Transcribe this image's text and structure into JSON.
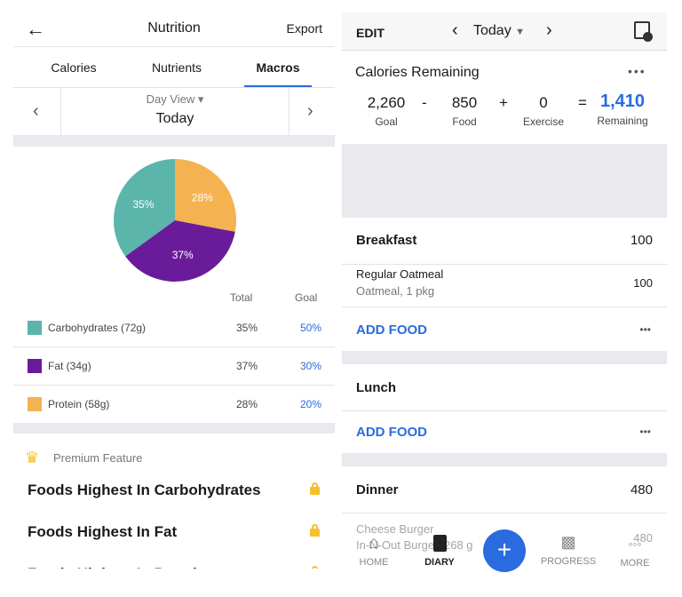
{
  "left": {
    "header": {
      "title": "Nutrition",
      "export": "Export"
    },
    "tabs": [
      {
        "label": "Calories"
      },
      {
        "label": "Nutrients"
      },
      {
        "label": "Macros"
      }
    ],
    "day": {
      "view": "Day View",
      "date": "Today"
    },
    "chart_data": {
      "type": "pie",
      "slices": [
        {
          "name": "Protein",
          "value": 28,
          "label": "28%",
          "color": "#f4b350"
        },
        {
          "name": "Fat",
          "value": 37,
          "label": "37%",
          "color": "#6a1b9a"
        },
        {
          "name": "Carbohydrates",
          "value": 35,
          "label": "35%",
          "color": "#5bb5aa"
        }
      ]
    },
    "table": {
      "total_header": "Total",
      "goal_header": "Goal",
      "rows": [
        {
          "name": "Carbohydrates (72g)",
          "total": "35%",
          "goal": "50%",
          "color": "#5bb5aa"
        },
        {
          "name": "Fat (34g)",
          "total": "37%",
          "goal": "30%",
          "color": "#6a1b9a"
        },
        {
          "name": "Protein (58g)",
          "total": "28%",
          "goal": "20%",
          "color": "#f4b350"
        }
      ]
    },
    "premium": {
      "label": "Premium Feature",
      "items": [
        "Foods Highest In Carbohydrates",
        "Foods Highest In Fat",
        "Foods Highest In Protein"
      ]
    }
  },
  "right": {
    "header": {
      "edit": "EDIT",
      "date": "Today"
    },
    "calories": {
      "title": "Calories Remaining",
      "goal": "2,260",
      "goal_label": "Goal",
      "minus": "-",
      "food": "850",
      "food_label": "Food",
      "plus": "+",
      "exercise": "0",
      "exercise_label": "Exercise",
      "equals": "=",
      "remaining": "1,410",
      "remaining_label": "Remaining"
    },
    "breakfast": {
      "title": "Breakfast",
      "cal": "100",
      "item": {
        "name": "Regular Oatmeal",
        "detail": "Oatmeal, 1 pkg",
        "cal": "100"
      },
      "add": "ADD FOOD"
    },
    "lunch": {
      "title": "Lunch",
      "add": "ADD FOOD"
    },
    "dinner": {
      "title": "Dinner",
      "cal": "480",
      "item": {
        "name": "Cheese Burger",
        "detail": "In-N-Out Burger, 268 g",
        "cal": "480"
      }
    },
    "nav": [
      {
        "label": "HOME"
      },
      {
        "label": "DIARY"
      },
      {
        "label": "PROGRESS"
      },
      {
        "label": "MORE"
      }
    ]
  }
}
